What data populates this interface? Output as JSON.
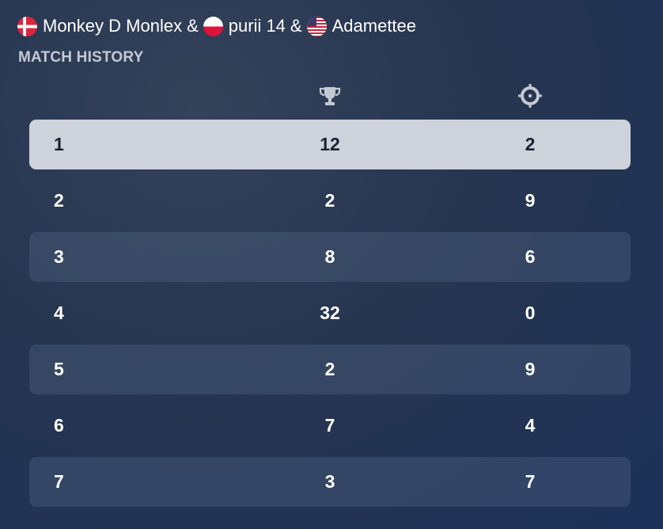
{
  "players": [
    {
      "name": "Monkey D Monlex",
      "flag": "denmark"
    },
    {
      "name": "purii 14",
      "flag": "poland"
    },
    {
      "name": "Adamettee",
      "flag": "united-states"
    }
  ],
  "separator": "&",
  "title": "MATCH HISTORY",
  "columns": {
    "trophy_icon": "trophy-icon",
    "target_icon": "crosshair-icon"
  },
  "rows": [
    {
      "number": "1",
      "trophies": "12",
      "targets": "2",
      "selected": true
    },
    {
      "number": "2",
      "trophies": "2",
      "targets": "9"
    },
    {
      "number": "3",
      "trophies": "8",
      "targets": "6"
    },
    {
      "number": "4",
      "trophies": "32",
      "targets": "0"
    },
    {
      "number": "5",
      "trophies": "2",
      "targets": "9"
    },
    {
      "number": "6",
      "trophies": "7",
      "targets": "4"
    },
    {
      "number": "7",
      "trophies": "3",
      "targets": "7"
    }
  ],
  "colors": {
    "background": "#263550",
    "selected_row": "#cdd2db",
    "title": "#c4c9d3"
  }
}
